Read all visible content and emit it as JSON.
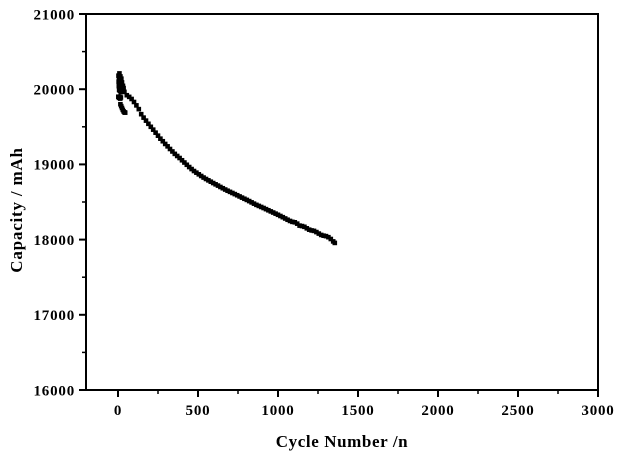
{
  "chart_data": {
    "type": "scatter",
    "title": "",
    "xlabel": "Cycle Number /n",
    "ylabel": "Capacity / mAh",
    "xlim": [
      -200,
      3000
    ],
    "ylim": [
      16000,
      21000
    ],
    "x_major_ticks": [
      0,
      500,
      1000,
      1500,
      2000,
      2500,
      3000
    ],
    "x_minor_ticks": [
      250,
      750,
      1250,
      1750,
      2250,
      2750
    ],
    "y_major_ticks": [
      16000,
      17000,
      18000,
      19000,
      20000,
      21000
    ],
    "y_minor_ticks": [
      16500,
      17500,
      18500,
      19500,
      20500
    ],
    "grid": false,
    "legend": false,
    "background": "#ffffff",
    "frame_color": "#000000",
    "marker": {
      "shape": "square",
      "size": 4.6,
      "color": "#000000"
    },
    "series": [
      {
        "name": "capacity-vs-cycle",
        "points": [
          [
            3,
            20180
          ],
          [
            4,
            20100
          ],
          [
            5,
            20040
          ],
          [
            6,
            20160
          ],
          [
            7,
            19990
          ],
          [
            8,
            20090
          ],
          [
            9,
            20210
          ],
          [
            10,
            20150
          ],
          [
            11,
            20060
          ],
          [
            12,
            19980
          ],
          [
            13,
            20110
          ],
          [
            14,
            20030
          ],
          [
            15,
            20170
          ],
          [
            16,
            20080
          ],
          [
            17,
            19960
          ],
          [
            18,
            20120
          ],
          [
            19,
            20050
          ],
          [
            20,
            19995
          ],
          [
            21,
            20140
          ],
          [
            22,
            20070
          ],
          [
            23,
            19975
          ],
          [
            24,
            20020
          ],
          [
            25,
            20090
          ],
          [
            27,
            20010
          ],
          [
            29,
            19965
          ],
          [
            31,
            20045
          ],
          [
            33,
            19985
          ],
          [
            35,
            20015
          ],
          [
            2,
            19900
          ],
          [
            6,
            19885
          ],
          [
            10,
            19895
          ],
          [
            14,
            19875
          ],
          [
            18,
            19890
          ],
          [
            15,
            19800
          ],
          [
            20,
            19775
          ],
          [
            25,
            19750
          ],
          [
            30,
            19725
          ],
          [
            35,
            19705
          ],
          [
            40,
            19693
          ],
          [
            45,
            19688
          ],
          [
            40,
            19965
          ],
          [
            55,
            19920
          ],
          [
            70,
            19898
          ],
          [
            85,
            19870
          ],
          [
            100,
            19830
          ],
          [
            115,
            19785
          ],
          [
            130,
            19735
          ],
          [
            145,
            19668
          ],
          [
            160,
            19622
          ],
          [
            175,
            19582
          ],
          [
            190,
            19540
          ],
          [
            205,
            19500
          ],
          [
            220,
            19462
          ],
          [
            235,
            19422
          ],
          [
            250,
            19382
          ],
          [
            265,
            19342
          ],
          [
            280,
            19308
          ],
          [
            295,
            19272
          ],
          [
            310,
            19240
          ],
          [
            325,
            19205
          ],
          [
            340,
            19172
          ],
          [
            355,
            19140
          ],
          [
            370,
            19112
          ],
          [
            385,
            19085
          ],
          [
            400,
            19055
          ],
          [
            415,
            19025
          ],
          [
            430,
            18995
          ],
          [
            445,
            18965
          ],
          [
            460,
            18938
          ],
          [
            475,
            18912
          ],
          [
            490,
            18890
          ],
          [
            505,
            18868
          ],
          [
            520,
            18846
          ],
          [
            535,
            18825
          ],
          [
            550,
            18806
          ],
          [
            565,
            18788
          ],
          [
            580,
            18770
          ],
          [
            595,
            18752
          ],
          [
            610,
            18735
          ],
          [
            625,
            18718
          ],
          [
            640,
            18700
          ],
          [
            655,
            18683
          ],
          [
            670,
            18666
          ],
          [
            685,
            18650
          ],
          [
            700,
            18635
          ],
          [
            715,
            18620
          ],
          [
            730,
            18605
          ],
          [
            745,
            18590
          ],
          [
            760,
            18574
          ],
          [
            775,
            18558
          ],
          [
            790,
            18543
          ],
          [
            805,
            18528
          ],
          [
            820,
            18512
          ],
          [
            835,
            18495
          ],
          [
            850,
            18478
          ],
          [
            865,
            18462
          ],
          [
            880,
            18448
          ],
          [
            895,
            18434
          ],
          [
            910,
            18420
          ],
          [
            925,
            18405
          ],
          [
            940,
            18390
          ],
          [
            955,
            18375
          ],
          [
            970,
            18360
          ],
          [
            985,
            18345
          ],
          [
            1000,
            18330
          ],
          [
            1015,
            18314
          ],
          [
            1030,
            18298
          ],
          [
            1045,
            18281
          ],
          [
            1060,
            18264
          ],
          [
            1075,
            18248
          ],
          [
            1090,
            18236
          ],
          [
            1105,
            18230
          ],
          [
            1120,
            18212
          ],
          [
            1135,
            18186
          ],
          [
            1150,
            18180
          ],
          [
            1165,
            18170
          ],
          [
            1180,
            18150
          ],
          [
            1195,
            18132
          ],
          [
            1210,
            18122
          ],
          [
            1225,
            18116
          ],
          [
            1240,
            18100
          ],
          [
            1255,
            18080
          ],
          [
            1270,
            18062
          ],
          [
            1285,
            18052
          ],
          [
            1300,
            18046
          ],
          [
            1315,
            18032
          ],
          [
            1330,
            18008
          ],
          [
            1345,
            17976
          ],
          [
            1355,
            17956
          ]
        ]
      }
    ]
  }
}
